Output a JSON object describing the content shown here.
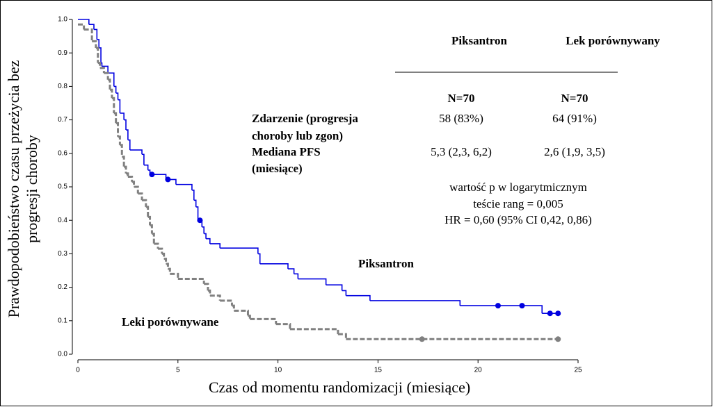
{
  "chart_data": {
    "type": "step",
    "xlabel": "Czas od momentu randomizacji (miesiące)",
    "ylabel": [
      "Prawdopodobieństwo czasu przeżycia bez",
      "progresji choroby"
    ],
    "xlim": [
      0,
      25
    ],
    "ylim": [
      0,
      1
    ],
    "xticks": [
      0,
      5,
      10,
      15,
      20,
      25
    ],
    "yticks": [
      {
        "value": 0,
        "label": "0.0"
      },
      0.1,
      0.2,
      0.3,
      0.4,
      0.5,
      0.6,
      0.7,
      0.8,
      0.9,
      {
        "value": 1,
        "label": "1.0"
      }
    ],
    "series": [
      {
        "name": "Piksantron",
        "color": "#0000e0",
        "x": [
          0,
          0.55,
          0.8,
          0.95,
          1.05,
          1.15,
          1.2,
          1.5,
          1.8,
          1.9,
          2.0,
          2.1,
          2.3,
          2.4,
          2.5,
          2.6,
          3.2,
          3.3,
          3.5,
          3.6,
          4.4,
          4.9,
          5.7,
          5.8,
          5.9,
          6.0,
          6.2,
          6.3,
          6.4,
          6.6,
          7.1,
          9.0,
          9.1,
          10.5,
          10.8,
          11.0,
          12.4,
          13.2,
          13.4,
          14.6,
          19.1,
          23.2
        ],
        "values": [
          1.0,
          0.985,
          0.97,
          0.94,
          0.915,
          0.87,
          0.86,
          0.84,
          0.8,
          0.78,
          0.76,
          0.72,
          0.7,
          0.67,
          0.64,
          0.61,
          0.597,
          0.565,
          0.55,
          0.537,
          0.522,
          0.507,
          0.49,
          0.46,
          0.44,
          0.4,
          0.38,
          0.36,
          0.345,
          0.33,
          0.317,
          0.3,
          0.27,
          0.255,
          0.24,
          0.225,
          0.207,
          0.19,
          0.175,
          0.16,
          0.145,
          0.122
        ],
        "censor_x": [
          3.7,
          4.5,
          6.1,
          21.0,
          22.2,
          23.6,
          24.0
        ],
        "censor_values": [
          0.537,
          0.522,
          0.4,
          0.145,
          0.145,
          0.122,
          0.122
        ]
      },
      {
        "name": "Leki porównywane",
        "color": "#808080",
        "x": [
          0,
          0.3,
          0.7,
          0.9,
          1.0,
          1.1,
          1.3,
          1.5,
          1.6,
          1.7,
          1.8,
          1.9,
          2.0,
          2.1,
          2.2,
          2.3,
          2.4,
          2.5,
          2.7,
          2.8,
          3.0,
          3.2,
          3.4,
          3.5,
          3.6,
          3.7,
          3.8,
          4.0,
          4.2,
          4.3,
          4.4,
          4.5,
          4.6,
          5.0,
          6.3,
          6.5,
          6.6,
          7.1,
          7.7,
          7.8,
          8.5,
          8.6,
          9.9,
          10.6,
          13.0,
          13.4
        ],
        "values": [
          0.985,
          0.97,
          0.935,
          0.915,
          0.87,
          0.855,
          0.84,
          0.82,
          0.79,
          0.765,
          0.72,
          0.69,
          0.65,
          0.625,
          0.59,
          0.56,
          0.54,
          0.53,
          0.515,
          0.5,
          0.48,
          0.46,
          0.44,
          0.41,
          0.385,
          0.36,
          0.33,
          0.315,
          0.3,
          0.285,
          0.27,
          0.255,
          0.24,
          0.225,
          0.21,
          0.19,
          0.175,
          0.16,
          0.145,
          0.13,
          0.115,
          0.105,
          0.09,
          0.075,
          0.06,
          0.045
        ],
        "censor_x": [
          17.2,
          24.0
        ],
        "censor_values": [
          0.045,
          0.045
        ]
      }
    ],
    "table": {
      "headers": [
        "Piksantron",
        "Lek porównywany"
      ],
      "n": [
        "N=70",
        "N=70"
      ],
      "rows": [
        {
          "label": [
            "Zdarzenie (progresja",
            "choroby lub zgon)"
          ],
          "values": [
            "58 (83%)",
            "64 (91%)"
          ]
        },
        {
          "label": [
            "Mediana PFS",
            "(miesiące)"
          ],
          "values": [
            "5,3 (2,3, 6,2)",
            "2,6 (1,9, 3,5)"
          ]
        }
      ]
    },
    "annotation": [
      "wartość p w logarytmicznym",
      "teście rang = 0,005",
      "HR = 0,60 (95% CI 0,42, 0,86)"
    ]
  }
}
